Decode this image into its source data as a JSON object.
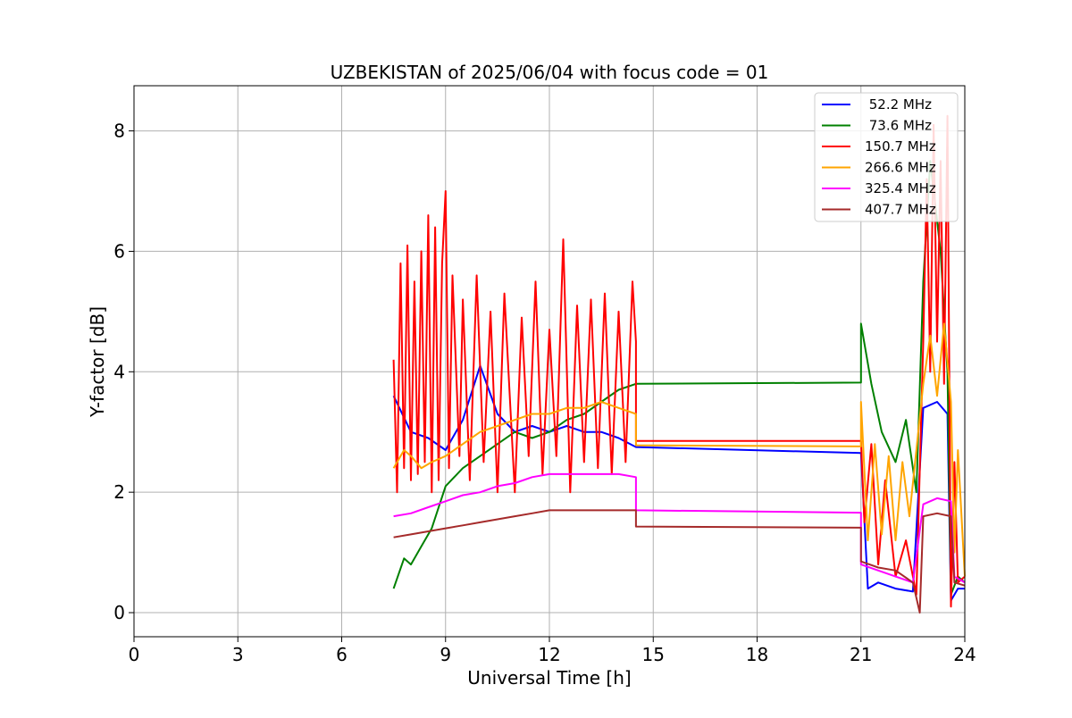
{
  "chart_data": {
    "type": "line",
    "title": "UZBEKISTAN of 2025/06/04 with focus code = 01",
    "xlabel": "Universal Time [h]",
    "ylabel": "Y-factor [dB]",
    "xlim": [
      0,
      24
    ],
    "ylim": [
      -0.4,
      8.75
    ],
    "xticks": [
      0,
      3,
      6,
      9,
      12,
      15,
      18,
      21,
      24
    ],
    "xtick_labels": [
      "0",
      "3",
      "6",
      "9",
      "12",
      "15",
      "18",
      "21",
      "24"
    ],
    "yticks": [
      0,
      2,
      4,
      6,
      8
    ],
    "ytick_labels": [
      "0",
      "2",
      "4",
      "6",
      "8"
    ],
    "grid": true,
    "legend_position": "top-right",
    "series": [
      {
        "name": " 52.2 MHz",
        "color": "#0000ff",
        "points": [
          [
            7.5,
            3.6
          ],
          [
            8.0,
            3.0
          ],
          [
            8.5,
            2.9
          ],
          [
            9.0,
            2.7
          ],
          [
            9.5,
            3.2
          ],
          [
            10.0,
            4.1
          ],
          [
            10.5,
            3.3
          ],
          [
            11.0,
            3.0
          ],
          [
            11.5,
            3.1
          ],
          [
            12.0,
            3.0
          ],
          [
            12.5,
            3.1
          ],
          [
            13.0,
            3.0
          ],
          [
            13.5,
            3.0
          ],
          [
            14.0,
            2.9
          ],
          [
            14.5,
            2.75
          ],
          [
            21.0,
            2.65
          ],
          [
            21.2,
            0.4
          ],
          [
            21.5,
            0.5
          ],
          [
            22.0,
            0.4
          ],
          [
            22.5,
            0.35
          ],
          [
            22.8,
            3.4
          ],
          [
            23.2,
            3.5
          ],
          [
            23.5,
            3.3
          ],
          [
            23.6,
            0.2
          ],
          [
            23.8,
            0.4
          ],
          [
            24.0,
            0.4
          ]
        ]
      },
      {
        "name": " 73.6 MHz",
        "color": "#008000",
        "points": [
          [
            7.5,
            0.4
          ],
          [
            7.8,
            0.9
          ],
          [
            8.0,
            0.8
          ],
          [
            8.3,
            1.1
          ],
          [
            8.6,
            1.4
          ],
          [
            9.0,
            2.1
          ],
          [
            9.5,
            2.4
          ],
          [
            10.0,
            2.6
          ],
          [
            10.5,
            2.8
          ],
          [
            11.0,
            3.0
          ],
          [
            11.5,
            2.9
          ],
          [
            12.0,
            3.0
          ],
          [
            12.5,
            3.2
          ],
          [
            13.0,
            3.3
          ],
          [
            13.5,
            3.5
          ],
          [
            14.0,
            3.7
          ],
          [
            14.5,
            3.8
          ],
          [
            21.0,
            3.82
          ],
          [
            21.0,
            4.8
          ],
          [
            21.3,
            3.8
          ],
          [
            21.6,
            3.0
          ],
          [
            22.0,
            2.5
          ],
          [
            22.3,
            3.2
          ],
          [
            22.6,
            2.0
          ],
          [
            22.8,
            5.5
          ],
          [
            23.0,
            7.5
          ],
          [
            23.3,
            6.0
          ],
          [
            23.5,
            4.0
          ],
          [
            23.6,
            0.3
          ],
          [
            23.8,
            0.6
          ],
          [
            24.0,
            0.5
          ]
        ]
      },
      {
        "name": "150.7 MHz",
        "color": "#ff0000",
        "points": [
          [
            7.5,
            4.2
          ],
          [
            7.6,
            2.0
          ],
          [
            7.7,
            5.8
          ],
          [
            7.8,
            2.4
          ],
          [
            7.9,
            6.1
          ],
          [
            8.0,
            2.2
          ],
          [
            8.1,
            5.5
          ],
          [
            8.2,
            2.3
          ],
          [
            8.3,
            6.0
          ],
          [
            8.4,
            2.5
          ],
          [
            8.5,
            6.6
          ],
          [
            8.6,
            2.0
          ],
          [
            8.7,
            6.4
          ],
          [
            8.8,
            2.2
          ],
          [
            8.9,
            5.8
          ],
          [
            9.0,
            7.0
          ],
          [
            9.1,
            2.4
          ],
          [
            9.2,
            5.6
          ],
          [
            9.4,
            2.6
          ],
          [
            9.5,
            5.2
          ],
          [
            9.7,
            2.2
          ],
          [
            9.9,
            5.6
          ],
          [
            10.1,
            2.5
          ],
          [
            10.3,
            5.0
          ],
          [
            10.5,
            2.0
          ],
          [
            10.7,
            5.3
          ],
          [
            11.0,
            2.0
          ],
          [
            11.2,
            4.9
          ],
          [
            11.4,
            2.6
          ],
          [
            11.6,
            5.5
          ],
          [
            11.8,
            2.3
          ],
          [
            12.0,
            4.7
          ],
          [
            12.2,
            2.6
          ],
          [
            12.4,
            6.2
          ],
          [
            12.6,
            2.0
          ],
          [
            12.8,
            5.1
          ],
          [
            13.0,
            2.5
          ],
          [
            13.2,
            5.2
          ],
          [
            13.4,
            2.4
          ],
          [
            13.6,
            5.3
          ],
          [
            13.8,
            2.3
          ],
          [
            14.0,
            5.0
          ],
          [
            14.2,
            2.5
          ],
          [
            14.4,
            5.5
          ],
          [
            14.5,
            4.5
          ],
          [
            14.5,
            2.85
          ],
          [
            21.0,
            2.85
          ],
          [
            21.1,
            1.5
          ],
          [
            21.3,
            2.8
          ],
          [
            21.5,
            0.8
          ],
          [
            21.7,
            2.2
          ],
          [
            22.0,
            0.6
          ],
          [
            22.3,
            1.2
          ],
          [
            22.6,
            0.3
          ],
          [
            22.8,
            4.5
          ],
          [
            22.9,
            7.2
          ],
          [
            23.0,
            4.0
          ],
          [
            23.1,
            8.1
          ],
          [
            23.2,
            4.5
          ],
          [
            23.3,
            7.5
          ],
          [
            23.4,
            3.8
          ],
          [
            23.5,
            8.25
          ],
          [
            23.6,
            0.1
          ],
          [
            23.7,
            2.5
          ],
          [
            23.8,
            0.5
          ],
          [
            24.0,
            0.6
          ]
        ]
      },
      {
        "name": "266.6 MHz",
        "color": "#ffa500",
        "points": [
          [
            7.5,
            2.4
          ],
          [
            7.8,
            2.7
          ],
          [
            8.0,
            2.6
          ],
          [
            8.3,
            2.4
          ],
          [
            8.6,
            2.5
          ],
          [
            9.0,
            2.6
          ],
          [
            9.5,
            2.8
          ],
          [
            10.0,
            3.0
          ],
          [
            10.5,
            3.1
          ],
          [
            11.0,
            3.2
          ],
          [
            11.5,
            3.3
          ],
          [
            12.0,
            3.3
          ],
          [
            12.5,
            3.4
          ],
          [
            13.0,
            3.4
          ],
          [
            13.5,
            3.5
          ],
          [
            14.0,
            3.4
          ],
          [
            14.5,
            3.3
          ],
          [
            14.5,
            2.78
          ],
          [
            21.0,
            2.76
          ],
          [
            21.0,
            3.5
          ],
          [
            21.2,
            1.2
          ],
          [
            21.4,
            2.8
          ],
          [
            21.6,
            1.3
          ],
          [
            21.8,
            2.6
          ],
          [
            22.0,
            1.2
          ],
          [
            22.2,
            2.5
          ],
          [
            22.4,
            1.6
          ],
          [
            22.6,
            2.7
          ],
          [
            22.8,
            3.8
          ],
          [
            23.0,
            4.6
          ],
          [
            23.2,
            3.6
          ],
          [
            23.4,
            4.8
          ],
          [
            23.6,
            3.5
          ],
          [
            23.7,
            1.0
          ],
          [
            23.8,
            2.7
          ],
          [
            24.0,
            0.6
          ]
        ]
      },
      {
        "name": "325.4 MHz",
        "color": "#ff00ff",
        "points": [
          [
            7.5,
            1.6
          ],
          [
            8.0,
            1.65
          ],
          [
            8.5,
            1.75
          ],
          [
            9.0,
            1.85
          ],
          [
            9.5,
            1.95
          ],
          [
            10.0,
            2.0
          ],
          [
            10.5,
            2.1
          ],
          [
            11.0,
            2.15
          ],
          [
            11.5,
            2.25
          ],
          [
            12.0,
            2.3
          ],
          [
            12.5,
            2.3
          ],
          [
            13.0,
            2.3
          ],
          [
            13.5,
            2.3
          ],
          [
            14.0,
            2.3
          ],
          [
            14.5,
            2.25
          ],
          [
            14.5,
            1.7
          ],
          [
            21.0,
            1.66
          ],
          [
            21.0,
            0.8
          ],
          [
            21.5,
            0.7
          ],
          [
            22.0,
            0.6
          ],
          [
            22.5,
            0.5
          ],
          [
            22.8,
            1.8
          ],
          [
            23.2,
            1.9
          ],
          [
            23.6,
            1.85
          ],
          [
            23.7,
            0.6
          ],
          [
            24.0,
            0.5
          ]
        ]
      },
      {
        "name": "407.7 MHz",
        "color": "#a52a2a",
        "points": [
          [
            7.5,
            1.25
          ],
          [
            8.0,
            1.3
          ],
          [
            8.5,
            1.35
          ],
          [
            9.0,
            1.4
          ],
          [
            9.5,
            1.45
          ],
          [
            10.0,
            1.5
          ],
          [
            10.5,
            1.55
          ],
          [
            11.0,
            1.6
          ],
          [
            11.5,
            1.65
          ],
          [
            12.0,
            1.7
          ],
          [
            12.5,
            1.7
          ],
          [
            13.0,
            1.7
          ],
          [
            13.5,
            1.7
          ],
          [
            14.0,
            1.7
          ],
          [
            14.5,
            1.7
          ],
          [
            14.5,
            1.43
          ],
          [
            21.0,
            1.41
          ],
          [
            21.0,
            0.85
          ],
          [
            21.5,
            0.75
          ],
          [
            22.0,
            0.7
          ],
          [
            22.5,
            0.5
          ],
          [
            22.7,
            0.0
          ],
          [
            22.8,
            1.6
          ],
          [
            23.2,
            1.65
          ],
          [
            23.6,
            1.6
          ],
          [
            23.7,
            0.5
          ],
          [
            24.0,
            0.45
          ]
        ]
      }
    ]
  }
}
